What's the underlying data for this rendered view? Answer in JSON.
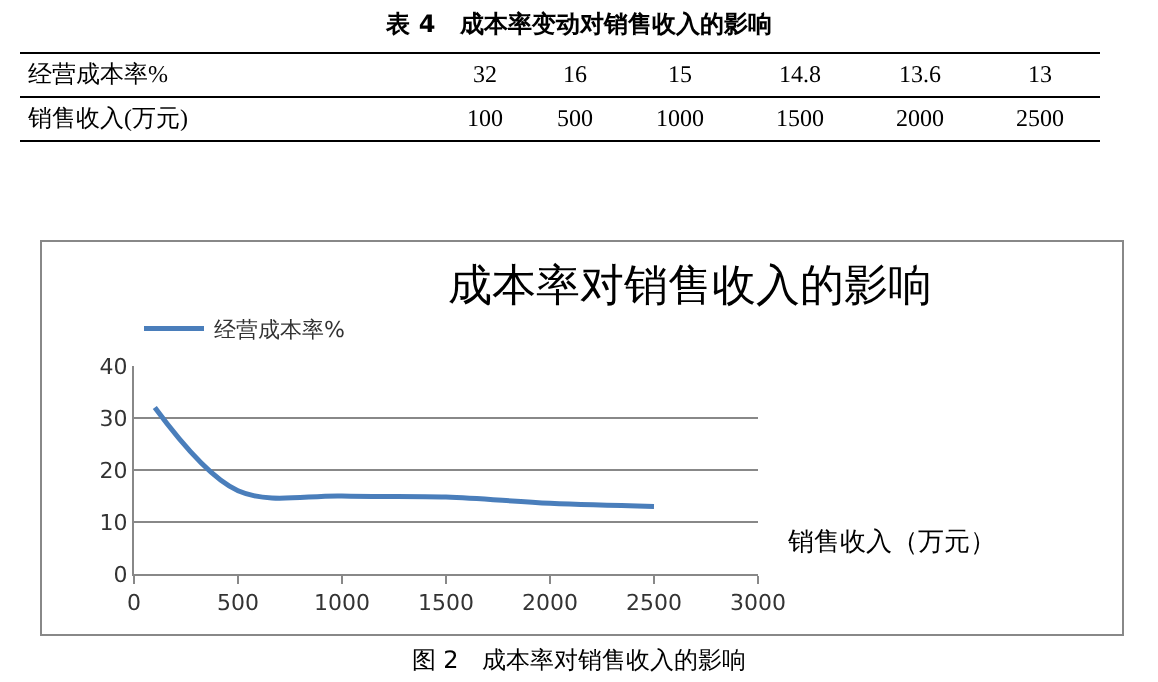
{
  "chart_data": {
    "type": "line",
    "title": "成本率对销售收入的影响",
    "xlabel": "销售收入（万元）",
    "x": [
      100,
      500,
      1000,
      1500,
      2000,
      2500
    ],
    "series": [
      {
        "name": "经营成本率%",
        "color": "#4a7ebb",
        "values": [
          32,
          16,
          15,
          14.8,
          13.6,
          13
        ]
      }
    ],
    "xlim": [
      0,
      3000
    ],
    "xticks": [
      0,
      500,
      1000,
      1500,
      2000,
      2500,
      3000
    ],
    "ylim": [
      0,
      40
    ],
    "yticks": [
      0,
      10,
      20,
      30,
      40
    ],
    "grid": "y",
    "legend": "top left",
    "marker": "none",
    "line_style": "solid",
    "annotations": [
      "表 4　成本率变动对销售收入的影响",
      "经营成本率%",
      "32",
      "16",
      "15",
      "14.8",
      "13.6",
      "13",
      "销售收入(万元)",
      "100",
      "500",
      "1000",
      "1500",
      "2000",
      "2500",
      "图 2　成本率对销售收入的影响"
    ]
  }
}
